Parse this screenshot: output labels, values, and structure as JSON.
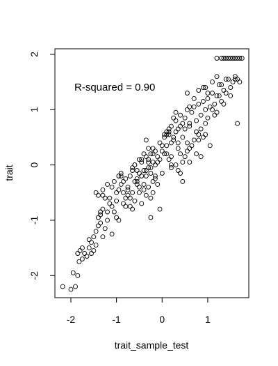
{
  "chart_data": {
    "type": "scatter",
    "title": "",
    "xlabel": "trait_sample_test",
    "ylabel": "trait",
    "annotation": "R-squared = 0.90",
    "xlim": [
      -2.35,
      1.9
    ],
    "ylim": [
      -2.4,
      2.1
    ],
    "xticks": [
      -2,
      -1,
      0,
      1
    ],
    "yticks": [
      -2,
      -1,
      0,
      1,
      2
    ],
    "xtick_labels": [
      "-2",
      "-1",
      "0",
      "1"
    ],
    "ytick_labels": [
      "-2",
      "-1",
      "0",
      "1",
      "2"
    ],
    "grid": false,
    "legend": "none",
    "marker_color": "#000000",
    "x": [
      -2.18,
      -1.9,
      -2.0,
      -1.85,
      -1.95,
      -1.85,
      -1.8,
      -1.82,
      -1.65,
      -1.75,
      -1.55,
      -1.6,
      -1.7,
      -1.5,
      -1.45,
      -1.4,
      -1.35,
      -1.45,
      -1.5,
      -1.3,
      -1.25,
      -1.4,
      -1.2,
      -1.35,
      -1.3,
      -1.15,
      -1.1,
      -1.25,
      -1.0,
      -1.05,
      -1.45,
      -1.4,
      -1.3,
      -1.2,
      -1.15,
      -1.1,
      -1.0,
      -0.95,
      -1.05,
      -0.9,
      -0.95,
      -0.85,
      -0.8,
      -0.75,
      -0.9,
      -0.85,
      -0.7,
      -0.65,
      -0.6,
      -0.55,
      -0.75,
      -0.7,
      -0.65,
      -0.5,
      -0.45,
      -0.4,
      -0.35,
      -0.6,
      -0.55,
      -0.3,
      -0.25,
      -0.2,
      -0.15,
      -0.5,
      -0.45,
      -0.4,
      -0.35,
      -0.3,
      -0.25,
      -0.2,
      -0.15,
      -0.1,
      -0.05,
      0.0,
      -0.3,
      -0.25,
      -0.2,
      -0.1,
      0.0,
      0.05,
      0.1,
      0.15,
      0.2,
      -0.6,
      -0.55,
      -0.45,
      -0.4,
      -0.35,
      -0.3,
      -0.2,
      -0.15,
      -0.1,
      -0.05,
      0.05,
      0.1,
      0.15,
      0.2,
      0.25,
      0.3,
      0.35,
      0.4,
      0.45,
      0.5,
      0.55,
      0.6,
      -0.85,
      -0.8,
      -0.75,
      -0.7,
      -0.65,
      -0.6,
      -0.5,
      -0.45,
      -0.4,
      -0.35,
      -0.3,
      -0.25,
      -0.2,
      0.1,
      0.15,
      0.2,
      0.25,
      0.3,
      0.35,
      0.4,
      0.45,
      0.5,
      0.55,
      0.6,
      0.65,
      0.7,
      0.75,
      0.8,
      0.85,
      0.9,
      0.95,
      1.0,
      1.05,
      1.1,
      0.3,
      0.35,
      0.45,
      0.5,
      0.55,
      0.65,
      0.7,
      0.75,
      0.8,
      0.85,
      0.9,
      0.95,
      1.0,
      1.1,
      1.15,
      1.2,
      1.25,
      1.3,
      1.35,
      1.4,
      0.6,
      0.7,
      0.8,
      0.9,
      1.0,
      1.1,
      1.2,
      1.3,
      1.4,
      1.5,
      1.55,
      1.6,
      1.65,
      1.7,
      1.2,
      1.3,
      1.35,
      1.4,
      1.45,
      1.5,
      1.55,
      1.6,
      1.65,
      1.7,
      1.75,
      -0.25,
      0.05,
      0.2,
      0.1,
      -1.3,
      -0.95,
      -0.8,
      -1.35,
      0.4,
      0.6,
      0.25,
      0.95,
      1.2,
      1.45,
      1.65,
      1.05,
      0.45,
      0.75,
      0.85,
      -0.5,
      -0.65,
      -0.15,
      -0.05,
      0.35,
      -1.55,
      -1.6,
      -1.75,
      -1.1,
      -0.55,
      0.0,
      0.3,
      0.55,
      0.15,
      -0.35,
      -0.9,
      -1.2,
      -1.0,
      1.25,
      1.35,
      1.5,
      1.6,
      1.15,
      0.95,
      0.8,
      0.6,
      0.4,
      0.2
    ],
    "y": [
      -2.2,
      -2.2,
      -2.25,
      -2.0,
      -1.95,
      -1.6,
      -1.55,
      -1.75,
      -1.65,
      -1.5,
      -1.4,
      -1.35,
      -1.6,
      -1.3,
      -1.2,
      -1.1,
      -1.05,
      -1.45,
      -1.55,
      -1.3,
      -1.15,
      -0.95,
      -1.0,
      -0.9,
      -0.8,
      -0.7,
      -0.75,
      -0.6,
      -0.65,
      -0.85,
      -0.5,
      -0.55,
      -0.45,
      -0.35,
      -0.6,
      -0.4,
      -0.5,
      -0.45,
      -0.3,
      -0.35,
      -0.2,
      -0.3,
      -0.25,
      -0.4,
      -0.15,
      -0.5,
      -0.2,
      -0.1,
      -0.3,
      -0.25,
      -0.45,
      -0.6,
      -0.05,
      -0.15,
      -0.2,
      -0.35,
      -0.1,
      0.0,
      -0.3,
      -0.05,
      -0.15,
      0.05,
      -0.25,
      0.1,
      0.05,
      -0.1,
      0.15,
      0.1,
      -0.05,
      0.2,
      0.0,
      0.15,
      0.1,
      0.25,
      0.3,
      0.2,
      -0.3,
      0.05,
      -0.15,
      0.2,
      0.35,
      0.1,
      0.4,
      0.0,
      -0.1,
      0.1,
      0.2,
      -0.2,
      0.05,
      0.3,
      0.25,
      -0.35,
      0.4,
      0.5,
      0.2,
      0.55,
      0.15,
      0.45,
      0.6,
      0.3,
      0.7,
      0.5,
      0.65,
      0.4,
      0.75,
      -0.7,
      -0.6,
      -0.55,
      -0.75,
      -0.8,
      -0.65,
      -0.5,
      -0.7,
      -0.45,
      -0.55,
      -0.4,
      -0.6,
      -0.5,
      0.55,
      0.6,
      0.7,
      0.5,
      0.8,
      0.65,
      0.9,
      0.75,
      0.85,
      1.0,
      0.7,
      0.95,
      1.05,
      0.8,
      1.1,
      0.9,
      1.15,
      1.0,
      1.2,
      1.05,
      1.3,
      0.0,
      -0.1,
      0.05,
      0.15,
      0.25,
      0.35,
      0.45,
      0.2,
      0.55,
      0.65,
      0.5,
      0.75,
      0.85,
      1.0,
      1.1,
      0.95,
      1.25,
      1.15,
      1.35,
      1.3,
      1.05,
      1.2,
      1.35,
      1.4,
      1.3,
      1.5,
      1.6,
      1.45,
      1.55,
      1.4,
      1.5,
      1.6,
      1.55,
      1.5,
      1.93,
      1.93,
      1.93,
      1.93,
      1.93,
      1.93,
      1.93,
      1.93,
      1.93,
      1.93,
      1.93,
      -0.95,
      0.55,
      -0.05,
      0.6,
      -0.55,
      -1.0,
      -0.75,
      -0.85,
      -0.15,
      0.3,
      0.85,
      1.4,
      1.25,
      1.55,
      0.75,
      0.35,
      -0.3,
      0.6,
      0.15,
      -0.4,
      -0.5,
      -0.2,
      -0.8,
      0.4,
      -1.6,
      -1.5,
      -1.7,
      -1.25,
      -0.35,
      0.35,
      0.95,
      1.3,
      0.65,
      0.45,
      -0.2,
      -0.85,
      -0.95,
      1.45,
      1.1,
      1.25,
      1.55,
      0.9,
      0.55,
      0.45,
      0.05,
      0.2,
      0.0
    ]
  }
}
